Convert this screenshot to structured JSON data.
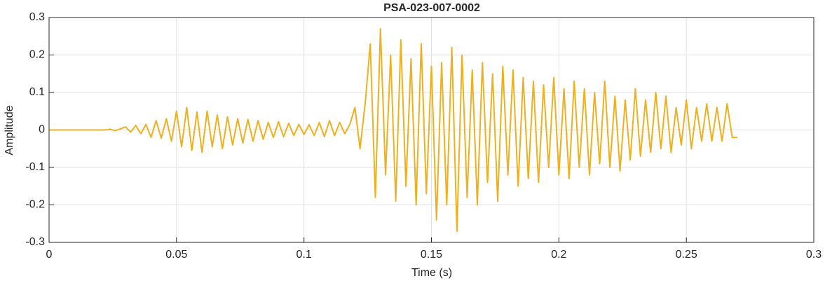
{
  "chart_data": {
    "type": "line",
    "title": "PSA-023-007-0002",
    "xlabel": "Time (s)",
    "ylabel": "Amplitude",
    "xlim": [
      0,
      0.3
    ],
    "ylim": [
      -0.3,
      0.3
    ],
    "xticks": [
      0,
      0.05,
      0.1,
      0.15,
      0.2,
      0.25,
      0.3
    ],
    "yticks": [
      -0.3,
      -0.2,
      -0.1,
      0,
      0.1,
      0.2,
      0.3
    ],
    "grid": true,
    "x": [
      0,
      0.022,
      0.024,
      0.026,
      0.028,
      0.03,
      0.032,
      0.034,
      0.036,
      0.038,
      0.04,
      0.042,
      0.044,
      0.046,
      0.048,
      0.05,
      0.052,
      0.054,
      0.056,
      0.058,
      0.06,
      0.062,
      0.064,
      0.066,
      0.068,
      0.07,
      0.072,
      0.074,
      0.076,
      0.078,
      0.08,
      0.082,
      0.084,
      0.086,
      0.088,
      0.09,
      0.092,
      0.094,
      0.096,
      0.098,
      0.1,
      0.102,
      0.104,
      0.106,
      0.108,
      0.11,
      0.112,
      0.114,
      0.116,
      0.118,
      0.12,
      0.122,
      0.124,
      0.126,
      0.128,
      0.13,
      0.132,
      0.134,
      0.136,
      0.138,
      0.14,
      0.142,
      0.144,
      0.146,
      0.148,
      0.15,
      0.152,
      0.154,
      0.156,
      0.158,
      0.16,
      0.162,
      0.164,
      0.166,
      0.168,
      0.17,
      0.172,
      0.174,
      0.176,
      0.178,
      0.18,
      0.182,
      0.184,
      0.186,
      0.188,
      0.19,
      0.192,
      0.194,
      0.196,
      0.198,
      0.2,
      0.202,
      0.204,
      0.206,
      0.208,
      0.21,
      0.212,
      0.214,
      0.216,
      0.218,
      0.22,
      0.222,
      0.224,
      0.226,
      0.228,
      0.23,
      0.232,
      0.234,
      0.236,
      0.238,
      0.24,
      0.242,
      0.244,
      0.246,
      0.248,
      0.25,
      0.252,
      0.254,
      0.256,
      0.258,
      0.26,
      0.262,
      0.264,
      0.266,
      0.268,
      0.27
    ],
    "series": [
      {
        "color": "#EDB120",
        "values": [
          0,
          0,
          0.002,
          -0.002,
          0.003,
          0.008,
          -0.006,
          0.012,
          -0.01,
          0.015,
          -0.02,
          0.025,
          -0.022,
          0.03,
          -0.03,
          0.05,
          -0.045,
          0.06,
          -0.055,
          0.048,
          -0.06,
          0.05,
          -0.045,
          0.04,
          -0.05,
          0.035,
          -0.04,
          0.03,
          -0.035,
          0.028,
          -0.03,
          0.025,
          -0.025,
          0.02,
          -0.02,
          0.022,
          -0.018,
          0.018,
          -0.015,
          0.015,
          -0.012,
          0.014,
          -0.015,
          0.02,
          -0.018,
          0.025,
          -0.015,
          0.02,
          -0.01,
          0.015,
          0.06,
          -0.05,
          0.07,
          0.23,
          -0.18,
          0.27,
          -0.12,
          0.2,
          -0.19,
          0.24,
          -0.15,
          0.19,
          -0.2,
          0.23,
          -0.17,
          0.17,
          -0.24,
          0.18,
          -0.2,
          0.22,
          -0.27,
          0.2,
          -0.18,
          0.16,
          -0.2,
          0.18,
          -0.14,
          0.15,
          -0.19,
          0.17,
          -0.12,
          0.16,
          -0.15,
          0.14,
          -0.13,
          0.13,
          -0.14,
          0.12,
          -0.1,
          0.14,
          -0.12,
          0.11,
          -0.13,
          0.13,
          -0.1,
          0.11,
          -0.12,
          0.1,
          -0.09,
          0.13,
          -0.1,
          0.09,
          -0.11,
          0.08,
          -0.08,
          0.11,
          -0.07,
          0.08,
          -0.06,
          0.1,
          -0.05,
          0.09,
          -0.06,
          0.06,
          -0.04,
          0.08,
          -0.05,
          0.06,
          -0.03,
          0.07,
          -0.03,
          0.06,
          -0.03,
          0.07,
          -0.02,
          -0.02
        ]
      }
    ]
  }
}
